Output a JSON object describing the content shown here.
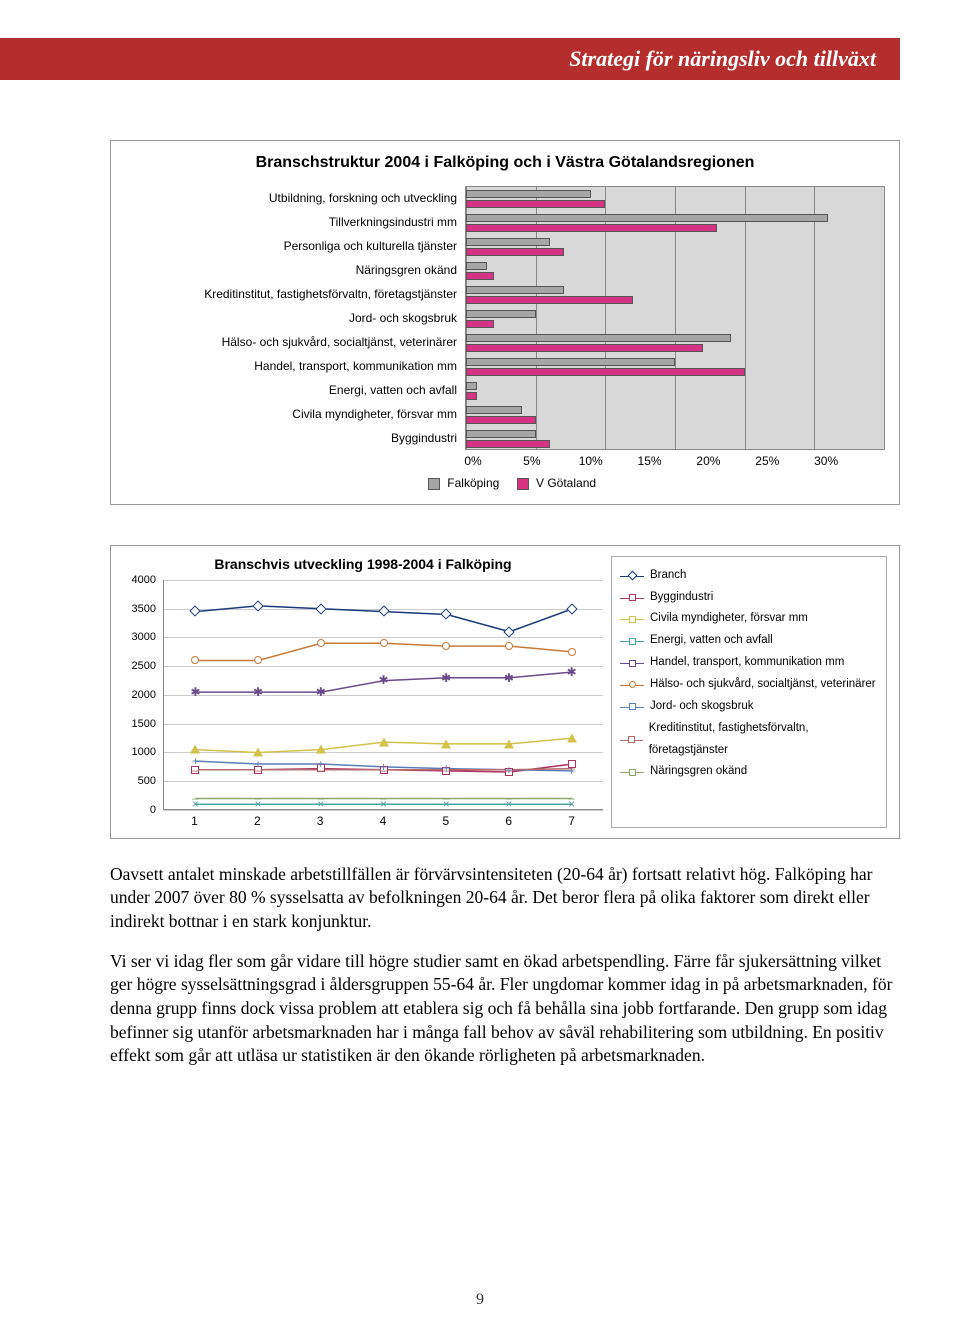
{
  "header": {
    "title": "Strategi för näringsliv och tillväxt"
  },
  "chart1": {
    "title": "Branschstruktur 2004 i Falköping och i Västra Götalandsregionen",
    "categories": [
      "Utbildning, forskning och utveckling",
      "Tillverkningsindustri mm",
      "Personliga och kulturella tjänster",
      "Näringsgren okänd",
      "Kreditinstitut, fastighetsförvaltn, företagstjänster",
      "Jord- och skogsbruk",
      "Hälso- och sjukvård, socialtjänst, veterinärer",
      "Handel, transport, kommunikation mm",
      "Energi, vatten och avfall",
      "Civila myndigheter, försvar mm",
      "Byggindustri"
    ],
    "falkoping": [
      9,
      26,
      6,
      1.5,
      7,
      5,
      19,
      15,
      0.8,
      4,
      5
    ],
    "vgotaland": [
      10,
      18,
      7,
      2,
      12,
      2,
      17,
      20,
      0.8,
      5,
      6
    ],
    "colors": {
      "falkoping": "#a6a6a6",
      "vgotaland": "#d63384"
    },
    "xlim": [
      0,
      30
    ],
    "xstep": 5,
    "xticks": [
      "0%",
      "5%",
      "10%",
      "15%",
      "20%",
      "25%",
      "30%"
    ],
    "legend": [
      "Falköping",
      "V Götaland"
    ]
  },
  "chart2": {
    "title": "Branschvis utveckling 1998-2004 i Falköping",
    "ylim": [
      0,
      4000
    ],
    "ystep": 500,
    "yticks": [
      "0",
      "500",
      "1000",
      "1500",
      "2000",
      "2500",
      "3000",
      "3500",
      "4000"
    ],
    "x": [
      1,
      2,
      3,
      4,
      5,
      6,
      7
    ],
    "series": [
      {
        "label": "Branch",
        "color": "#1b3a7a",
        "marker": "diamond",
        "values": [
          3450,
          3550,
          3500,
          3450,
          3400,
          3100,
          3500
        ]
      },
      {
        "label": "Byggindustri",
        "color": "#b03060",
        "marker": "square",
        "values": [
          700,
          700,
          720,
          700,
          680,
          660,
          800
        ]
      },
      {
        "label": "Civila myndigheter, försvar mm",
        "color": "#d2c24a",
        "marker": "triangle",
        "values": [
          1050,
          1000,
          1050,
          1180,
          1150,
          1150,
          1250
        ]
      },
      {
        "label": "Energi, vatten och avfall",
        "color": "#4aa5a5",
        "marker": "x",
        "values": [
          100,
          100,
          100,
          100,
          100,
          100,
          100
        ]
      },
      {
        "label": "Handel, transport, kommunikation mm",
        "color": "#6b4b8a",
        "marker": "asterisk",
        "values": [
          2050,
          2050,
          2050,
          2250,
          2300,
          2300,
          2400
        ]
      },
      {
        "label": "Hälso- och sjukvård, socialtjänst, veterinärer",
        "color": "#c87a3a",
        "marker": "circle",
        "values": [
          2600,
          2600,
          2900,
          2900,
          2850,
          2850,
          2750
        ]
      },
      {
        "label": "Jord- och skogsbruk",
        "color": "#5b7fb5",
        "marker": "plus",
        "values": [
          850,
          800,
          800,
          750,
          720,
          700,
          680
        ]
      },
      {
        "label": "Kreditinstitut, fastighetsförvaltn, företagstjänster",
        "color": "#b56b6b",
        "marker": "dash",
        "values": [
          700,
          700,
          700,
          700,
          700,
          700,
          720
        ]
      },
      {
        "label": "Näringsgren okänd",
        "color": "#8fa86b",
        "marker": "dash",
        "values": [
          200,
          200,
          200,
          200,
          200,
          200,
          200
        ]
      }
    ]
  },
  "body": {
    "p1": "Oavsett antalet minskade arbetstillfällen är förvärvsintensiteten (20-64 år) fortsatt relativt hög. Falköping har under 2007 över 80 % sysselsatta av befolkningen 20-64 år. Det beror flera på olika faktorer som direkt eller indirekt bottnar i en stark konjunktur.",
    "p2": "Vi ser vi idag fler som går vidare till högre studier samt en ökad arbetspendling. Färre får sjukersättning vilket ger högre sysselsättningsgrad i åldersgruppen 55-64 år. Fler ungdomar kommer idag in på arbetsmarknaden, för denna grupp finns dock vissa problem att etablera sig och få behålla sina jobb fortfarande. Den grupp som idag befinner sig utanför arbetsmarknaden har i många fall behov av såväl rehabilitering som utbildning. En positiv effekt som går att utläsa ur statistiken är den ökande rörligheten på arbetsmarknaden."
  },
  "pageNumber": "9"
}
